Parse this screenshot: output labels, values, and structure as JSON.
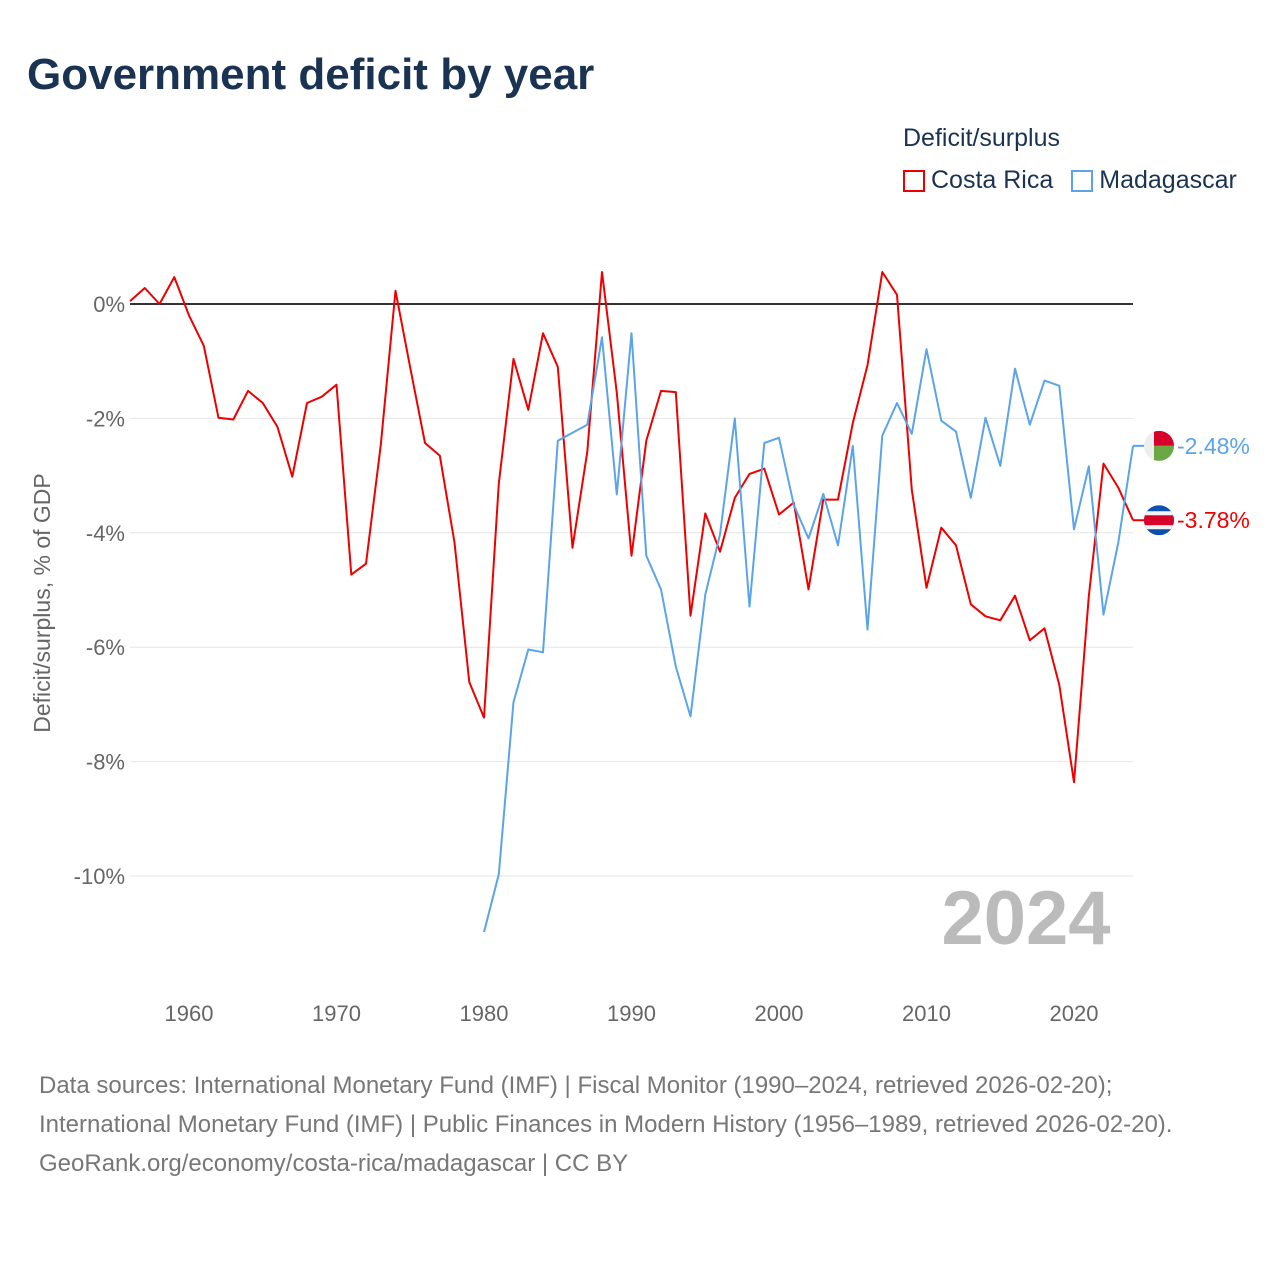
{
  "chart_data": {
    "type": "line",
    "title": "Government deficit by year",
    "legend_title": "Deficit/surplus",
    "ylabel": "Deficit/surplus, % of GDP",
    "xlabel": "",
    "xlim": [
      1956,
      2024
    ],
    "ylim": [
      -11,
      0.6
    ],
    "yticks": [
      0,
      -2,
      -4,
      -6,
      -8,
      -10
    ],
    "ytick_labels": [
      "0%",
      "-2%",
      "-4%",
      "-6%",
      "-8%",
      "-10%"
    ],
    "xticks": [
      1960,
      1970,
      1980,
      1990,
      2000,
      2010,
      2020
    ],
    "xtick_labels": [
      "1960",
      "1970",
      "1980",
      "1990",
      "2000",
      "2010",
      "2020"
    ],
    "year_label": "2024",
    "legend_placement": "top-right",
    "series": [
      {
        "name": "Costa Rica",
        "color": "#ee0000",
        "end_label": "-3.78%",
        "start_year": 1956,
        "values": [
          0.05,
          0.28,
          0.0,
          0.47,
          -0.2,
          -0.73,
          -1.99,
          -2.02,
          -1.52,
          -1.73,
          -2.15,
          -3.02,
          -1.73,
          -1.62,
          -1.41,
          -4.73,
          -4.54,
          -2.46,
          0.23,
          -1.12,
          -2.43,
          -2.65,
          -4.17,
          -6.61,
          -7.23,
          -3.14,
          -0.96,
          -1.85,
          -0.51,
          -1.1,
          -4.26,
          -2.58,
          0.56,
          -1.55,
          -4.4,
          -2.39,
          -1.52,
          -1.54,
          -5.45,
          -3.66,
          -4.33,
          -3.39,
          -2.97,
          -2.88,
          -3.68,
          -3.47,
          -4.99,
          -3.42,
          -3.42,
          -2.08,
          -1.07,
          0.56,
          0.16,
          -3.25,
          -4.96,
          -3.91,
          -4.22,
          -5.25,
          -5.46,
          -5.53,
          -5.1,
          -5.88,
          -5.67,
          -6.66,
          -8.36,
          -5.11,
          -2.79,
          -3.21,
          -3.78
        ]
      },
      {
        "name": "Madagascar",
        "color": "#5ba4e8",
        "end_label": "-2.48%",
        "start_year": 1980,
        "values": [
          -10.98,
          -9.97,
          -6.96,
          -6.04,
          -6.09,
          -2.39,
          -2.25,
          -2.11,
          -0.58,
          -3.33,
          -0.51,
          -4.4,
          -4.99,
          -6.34,
          -7.21,
          -5.08,
          -4.03,
          -2.0,
          -5.29,
          -2.43,
          -2.34,
          -3.51,
          -4.1,
          -3.32,
          -4.22,
          -2.48,
          -5.69,
          -2.3,
          -1.73,
          -2.27,
          -0.79,
          -2.04,
          -2.23,
          -3.39,
          -1.99,
          -2.83,
          -1.13,
          -2.11,
          -1.34,
          -1.43,
          -3.94,
          -2.84,
          -5.43,
          -4.17,
          -2.48
        ]
      }
    ]
  },
  "footer": {
    "sources": "Data sources: International Monetary Fund (IMF) | Fiscal Monitor (1990–2024, retrieved 2026-02-20); International Monetary Fund (IMF) | Public Finances in Modern History (1956–1989, retrieved 2026-02-20).",
    "credit": "GeoRank.org/economy/costa-rica/madagascar | CC BY"
  }
}
